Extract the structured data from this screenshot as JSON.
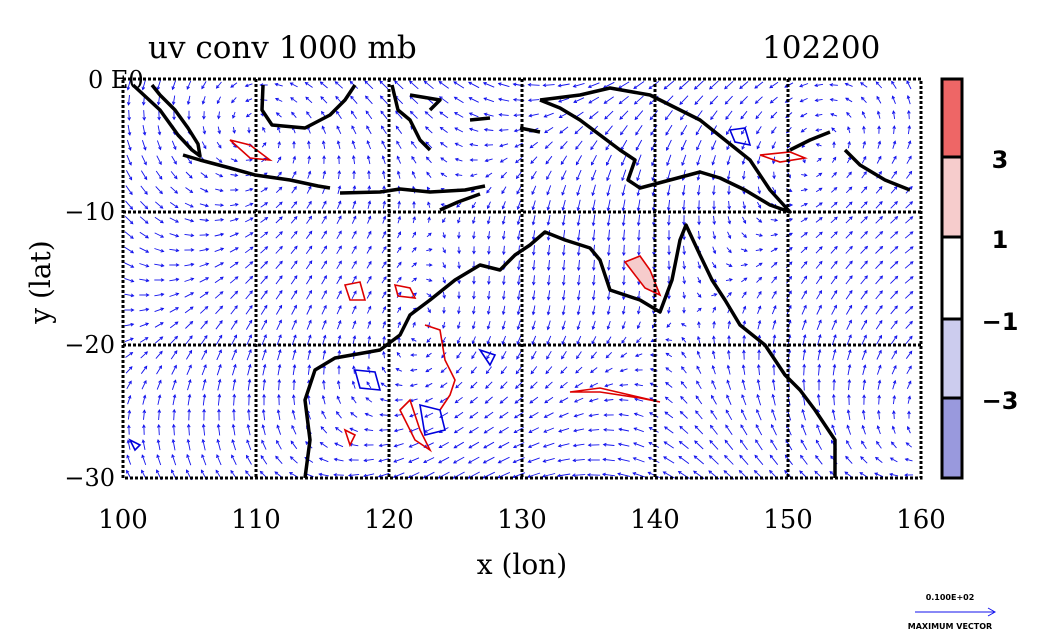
{
  "title": "uv conv 1000 mb",
  "date_label": "102200",
  "corner_label": "0 E0",
  "axes": {
    "xlabel": "x (lon)",
    "ylabel": "y (lat)",
    "xlim": [
      100,
      160
    ],
    "ylim": [
      -30,
      0
    ],
    "xticks": [
      "100",
      "110",
      "120",
      "130",
      "140",
      "150",
      "160"
    ],
    "yticks": [
      "−10",
      "−20",
      "−30"
    ],
    "grid": true
  },
  "colorbar": {
    "labels": [
      "3",
      "1",
      "−1",
      "−3"
    ],
    "colors": [
      "#ee6666",
      "#f6cccc",
      "#ffffff",
      "#ccccee",
      "#9999dd"
    ]
  },
  "reference_vector": {
    "value_label": "0.100E+02",
    "caption": "MAXIMUM VECTOR"
  },
  "chart_data": {
    "type": "vector-field-with-contours",
    "variable": "uv conv",
    "level": "1000 mb",
    "time": "102200",
    "contour_levels": [
      -3,
      -1,
      1,
      3
    ],
    "positive_contour_color": "#dd0000",
    "negative_contour_color": "#0000dd",
    "vector_color": "#0000ee",
    "coastline_color": "#000000"
  }
}
